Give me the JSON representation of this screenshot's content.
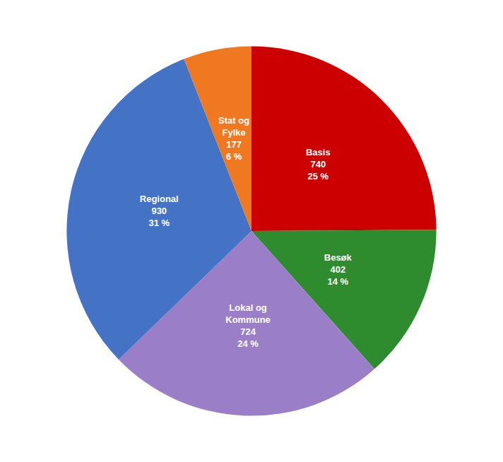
{
  "chart_data": {
    "type": "pie",
    "categories": [
      "Basis\n740\n25 %",
      "Besøk\n402\n14 %",
      "Lokal og\nKommune\n724\n24 %",
      "Regional\n930\n31 %",
      "Stat og\nFylke\n177\n6 %"
    ],
    "values": [
      740,
      402,
      724,
      930,
      177
    ],
    "colors": [
      "#cc0000",
      "#2e8b2e",
      "#9b7ec8",
      "#4472c4",
      "#f07820"
    ],
    "data_labels": true
  }
}
